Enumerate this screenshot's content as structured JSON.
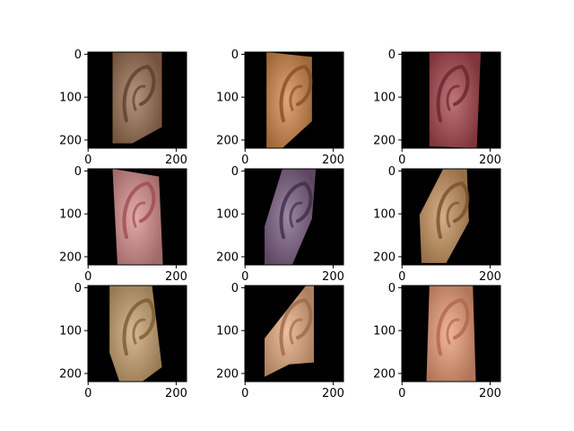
{
  "panels": [
    {
      "id": "ear-1",
      "yticks": [
        "0",
        "100",
        "200"
      ],
      "xticks": [
        "0",
        "200"
      ],
      "skin": "#9b7052",
      "skin_dark": "#5e3f2a",
      "bg_left": "#000000"
    },
    {
      "id": "ear-2",
      "yticks": [
        "0",
        "100",
        "200"
      ],
      "xticks": [
        "0",
        "200"
      ],
      "skin": "#d48a4a",
      "skin_dark": "#8a4d22",
      "bg_left": "#000000"
    },
    {
      "id": "ear-3",
      "yticks": [
        "0",
        "100",
        "200"
      ],
      "xticks": [
        "0",
        "200"
      ],
      "skin": "#a9464d",
      "skin_dark": "#6a2430",
      "bg_left": "#000000"
    },
    {
      "id": "ear-4",
      "yticks": [
        "0",
        "100",
        "200"
      ],
      "xticks": [
        "0",
        "200"
      ],
      "skin": "#d88f8e",
      "skin_dark": "#a04b4d",
      "bg_left": "#000000"
    },
    {
      "id": "ear-5",
      "yticks": [
        "0",
        "100",
        "200"
      ],
      "xticks": [
        "0",
        "200"
      ],
      "skin": "#7b5e82",
      "skin_dark": "#3e2d45",
      "bg_left": "#000000"
    },
    {
      "id": "ear-6",
      "yticks": [
        "0",
        "100",
        "200"
      ],
      "xticks": [
        "0",
        "200"
      ],
      "skin": "#c8945e",
      "skin_dark": "#7a4e2e",
      "bg_left": "#000000"
    },
    {
      "id": "ear-7",
      "yticks": [
        "0",
        "100",
        "200"
      ],
      "xticks": [
        "0",
        "200"
      ],
      "skin": "#c9a26e",
      "skin_dark": "#7a5a32",
      "bg_left": "#000000"
    },
    {
      "id": "ear-8",
      "yticks": [
        "0",
        "100",
        "200"
      ],
      "xticks": [
        "0",
        "200"
      ],
      "skin": "#e6aa7e",
      "skin_dark": "#9b6a48",
      "bg_left": "#000000"
    },
    {
      "id": "ear-9",
      "yticks": [
        "0",
        "100",
        "200"
      ],
      "xticks": [
        "0",
        "200"
      ],
      "skin": "#ec9c78",
      "skin_dark": "#b0664a",
      "bg_left": "#000000"
    }
  ]
}
